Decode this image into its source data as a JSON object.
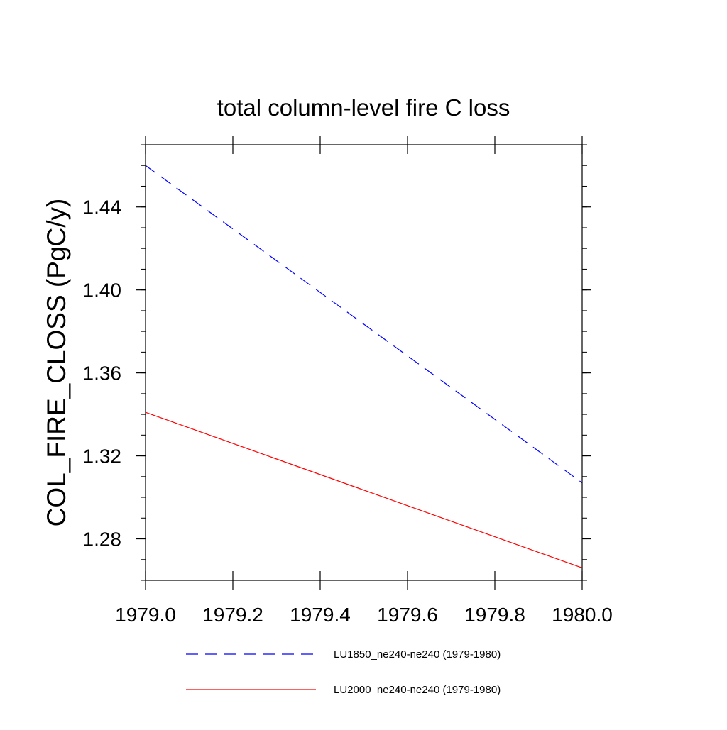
{
  "chart_data": {
    "type": "line",
    "title": "total column-level fire C loss",
    "xlabel": "",
    "ylabel": "COL_FIRE_CLOSS  (PgC/y)",
    "xlim": [
      1979.0,
      1980.0
    ],
    "ylim": [
      1.26,
      1.47
    ],
    "xticks": [
      1979.0,
      1979.2,
      1979.4,
      1979.6,
      1979.8,
      1980.0
    ],
    "xtick_labels": [
      "1979.0",
      "1979.2",
      "1979.4",
      "1979.6",
      "1979.8",
      "1980.0"
    ],
    "yticks": [
      1.28,
      1.32,
      1.36,
      1.4,
      1.44
    ],
    "ytick_labels": [
      "1.28",
      "1.32",
      "1.36",
      "1.40",
      "1.44"
    ],
    "grid": false,
    "legend_position": "bottom",
    "series": [
      {
        "name": "LU1850_ne240-ne240 (1979-1980)",
        "color": "#0000ff",
        "style": "dashed",
        "x": [
          1979.0,
          1980.0
        ],
        "y": [
          1.46,
          1.307
        ]
      },
      {
        "name": "LU2000_ne240-ne240 (1979-1980)",
        "color": "#ff0000",
        "style": "solid",
        "x": [
          1979.0,
          1980.0
        ],
        "y": [
          1.341,
          1.266
        ]
      }
    ]
  }
}
